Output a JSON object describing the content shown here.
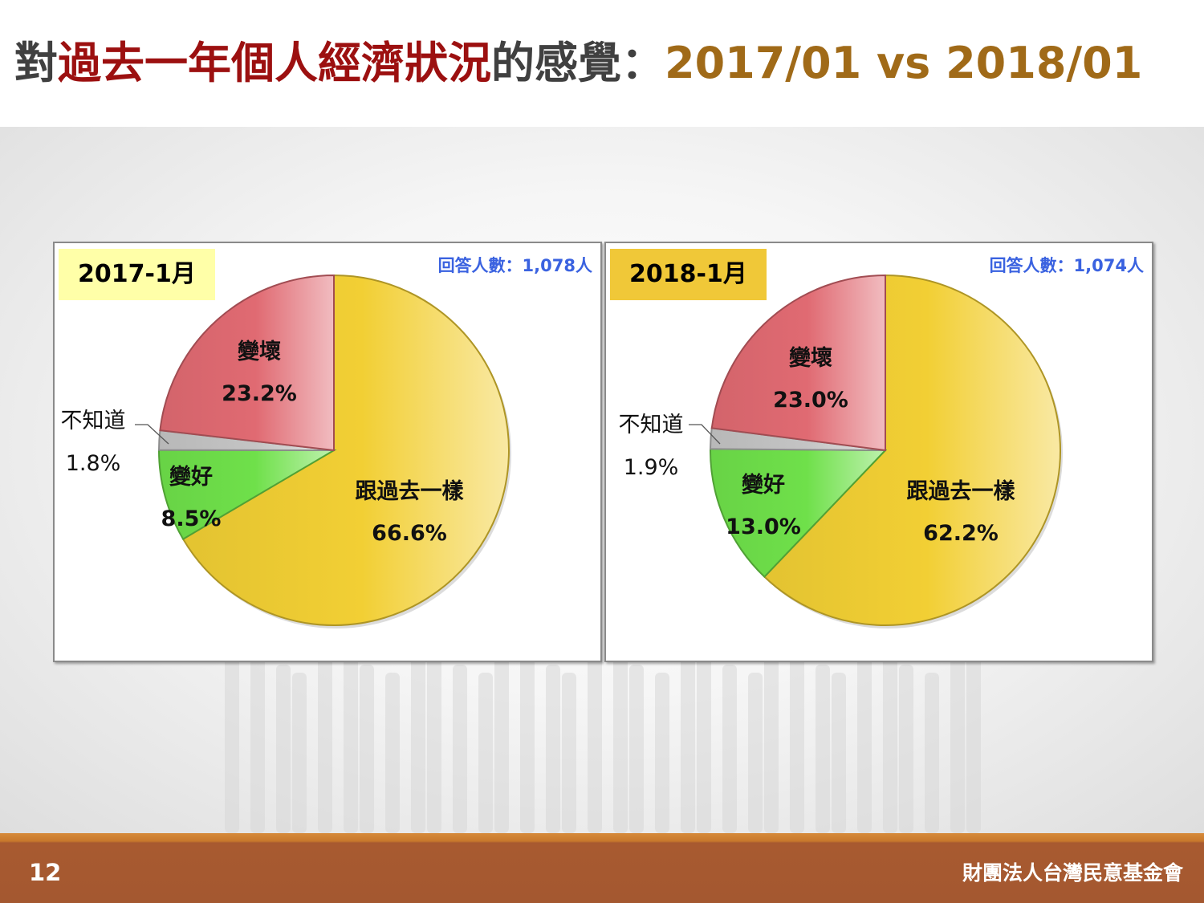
{
  "header": {
    "title_part1": "對",
    "title_part2": "過去一年個人經濟狀況",
    "title_part3": "的感覺：",
    "title_part4": "2017/01 vs 2018/01"
  },
  "chart_data": [
    {
      "type": "pie",
      "title": "2017-1月",
      "respondents_label": "回答人數：1,078人",
      "slices": [
        {
          "label": "跟過去一樣",
          "value": 66.6,
          "value_label": "66.6%",
          "color": "#f2cf34"
        },
        {
          "label": "變好",
          "value": 8.5,
          "value_label": "8.5%",
          "color": "#6fe04a"
        },
        {
          "label": "不知道",
          "value": 1.8,
          "value_label": "1.8%",
          "color": "#c4c4c4"
        },
        {
          "label": "變壞",
          "value": 23.2,
          "value_label": "23.2%",
          "color": "#e06a72"
        }
      ]
    },
    {
      "type": "pie",
      "title": "2018-1月",
      "respondents_label": "回答人數：1,074人",
      "slices": [
        {
          "label": "跟過去一樣",
          "value": 62.2,
          "value_label": "62.2%",
          "color": "#f2cf34"
        },
        {
          "label": "變好",
          "value": 13.0,
          "value_label": "13.0%",
          "color": "#6fe04a"
        },
        {
          "label": "不知道",
          "value": 1.9,
          "value_label": "1.9%",
          "color": "#c4c4c4"
        },
        {
          "label": "變壞",
          "value": 23.0,
          "value_label": "23.0%",
          "color": "#e06a72"
        }
      ]
    }
  ],
  "footer": {
    "page_number": "12",
    "organization": "財團法人台灣民意基金會"
  }
}
